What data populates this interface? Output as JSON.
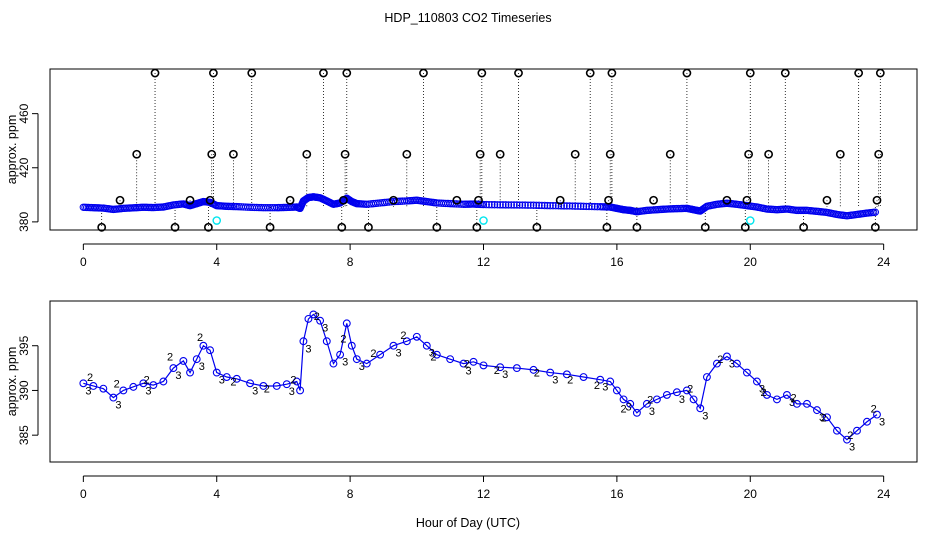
{
  "title": "HDP_110803  CO2 Timeseries",
  "xlabel": "Hour of Day (UTC)",
  "chart_data": [
    {
      "type": "scatter",
      "panel": "top",
      "ylabel": "approx. ppm",
      "xlim": [
        -1,
        25
      ],
      "ylim": [
        374,
        493
      ],
      "x_ticks": [
        0,
        4,
        8,
        12,
        16,
        20,
        24
      ],
      "x_tick_labels": [
        "0",
        "4",
        "8",
        "12",
        "16",
        "20",
        "24"
      ],
      "y_ticks": [
        380,
        420,
        460
      ],
      "y_tick_labels": [
        "380",
        "420",
        "460"
      ],
      "series": [
        {
          "name": "flagged (black circles)",
          "color": "#000000",
          "x": [
            0.55,
            1.1,
            1.6,
            2.15,
            2.75,
            3.2,
            3.75,
            3.8,
            3.85,
            3.9,
            4.5,
            5.05,
            5.6,
            6.2,
            6.7,
            7.2,
            7.75,
            7.8,
            7.85,
            7.9,
            8.55,
            9.3,
            9.7,
            10.2,
            10.6,
            11.2,
            11.8,
            11.85,
            11.9,
            11.95,
            12.5,
            13.05,
            13.6,
            14.3,
            14.75,
            15.2,
            15.7,
            15.75,
            15.8,
            15.85,
            16.6,
            17.1,
            17.6,
            18.1,
            18.65,
            19.3,
            19.85,
            19.9,
            19.95,
            20.0,
            20.55,
            21.05,
            21.6,
            22.3,
            22.7,
            23.25,
            23.75,
            23.8,
            23.85,
            23.9
          ],
          "y": [
            376,
            396,
            430,
            490,
            376,
            396,
            376,
            396,
            430,
            490,
            430,
            490,
            376,
            396,
            430,
            490,
            376,
            396,
            430,
            490,
            376,
            396,
            430,
            490,
            376,
            396,
            376,
            396,
            430,
            490,
            430,
            490,
            376,
            396,
            430,
            490,
            376,
            396,
            430,
            490,
            376,
            396,
            430,
            490,
            376,
            396,
            376,
            396,
            430,
            490,
            430,
            490,
            376,
            396,
            430,
            490,
            376,
            396,
            430,
            490
          ]
        },
        {
          "name": "cyan outliers",
          "color": "#00e5ee",
          "x": [
            4.0,
            12.0,
            20.0
          ],
          "y": [
            381,
            381,
            381
          ]
        }
      ]
    },
    {
      "type": "scatter",
      "panel": "bottom",
      "ylabel": "approx. ppm",
      "xlim": [
        -1,
        25
      ],
      "ylim": [
        382,
        400
      ],
      "x_ticks": [
        0,
        4,
        8,
        12,
        16,
        20,
        24
      ],
      "x_tick_labels": [
        "0",
        "4",
        "8",
        "12",
        "16",
        "20",
        "24"
      ],
      "y_ticks": [
        385,
        390,
        395
      ],
      "y_tick_labels": [
        "385",
        "390",
        "395"
      ],
      "series": [
        {
          "name": "blue circles / '3' markers",
          "color": "#0000ee",
          "x": [
            0.0,
            0.3,
            0.6,
            0.9,
            1.2,
            1.5,
            1.8,
            2.1,
            2.4,
            2.7,
            3.0,
            3.2,
            3.4,
            3.6,
            3.8,
            4.0,
            4.3,
            4.6,
            5.0,
            5.4,
            5.8,
            6.1,
            6.4,
            6.5,
            6.6,
            6.75,
            6.9,
            7.1,
            7.3,
            7.5,
            7.7,
            7.9,
            8.05,
            8.2,
            8.5,
            8.9,
            9.3,
            9.7,
            10.0,
            10.3,
            10.6,
            11.0,
            11.4,
            11.7,
            12.0,
            12.5,
            13.0,
            13.5,
            14.0,
            14.5,
            15.0,
            15.5,
            15.8,
            16.0,
            16.2,
            16.4,
            16.6,
            16.9,
            17.2,
            17.5,
            17.8,
            18.1,
            18.3,
            18.5,
            18.7,
            19.0,
            19.3,
            19.6,
            19.9,
            20.2,
            20.5,
            20.8,
            21.1,
            21.4,
            21.7,
            22.0,
            22.3,
            22.6,
            22.9,
            23.2,
            23.5,
            23.8
          ],
          "y": [
            390.8,
            390.5,
            390.2,
            389.2,
            390.0,
            390.4,
            390.8,
            390.6,
            391.0,
            392.5,
            393.3,
            392.0,
            393.5,
            395.0,
            394.5,
            392.0,
            391.5,
            391.3,
            390.8,
            390.5,
            390.5,
            390.7,
            391.0,
            390.0,
            395.5,
            398.0,
            398.5,
            397.8,
            395.5,
            393.0,
            394.0,
            397.5,
            395.0,
            393.5,
            393.0,
            394.0,
            395.0,
            395.5,
            396.0,
            395.0,
            394.0,
            393.5,
            393.0,
            393.2,
            392.8,
            392.6,
            392.5,
            392.3,
            392.0,
            391.8,
            391.5,
            391.2,
            391.0,
            390.0,
            389.0,
            388.5,
            387.5,
            388.5,
            389.0,
            389.5,
            389.8,
            390.0,
            389.0,
            388.0,
            391.5,
            393.0,
            393.8,
            393.0,
            392.0,
            391.0,
            389.5,
            389.0,
            389.5,
            388.5,
            388.5,
            387.8,
            387.0,
            385.5,
            384.5,
            385.5,
            386.5,
            387.3
          ]
        },
        {
          "name": "green '2' markers",
          "color": "#00c000",
          "x": [
            0.2,
            1.0,
            1.9,
            2.6,
            3.5,
            4.5,
            5.5,
            6.3,
            7.0,
            7.8,
            8.7,
            9.6,
            10.5,
            11.5,
            12.4,
            13.6,
            14.6,
            15.4,
            16.2,
            17.0,
            18.2,
            19.1,
            20.4,
            21.3,
            22.2,
            23.0,
            23.7
          ],
          "y": [
            391.5,
            390.8,
            391.2,
            393.8,
            396.0,
            391.0,
            390.2,
            391.2,
            398.3,
            395.8,
            394.2,
            396.2,
            393.8,
            393.0,
            392.3,
            392.0,
            391.2,
            390.6,
            388.0,
            389.0,
            390.2,
            393.5,
            389.8,
            389.2,
            387.0,
            385.0,
            388.0
          ]
        }
      ]
    }
  ]
}
